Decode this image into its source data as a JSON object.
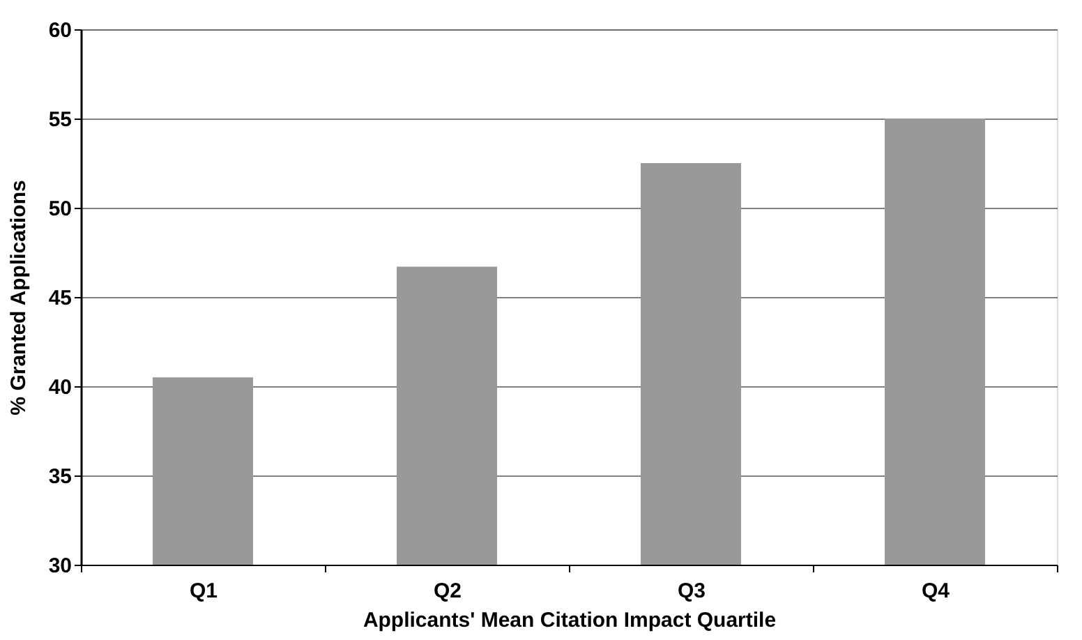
{
  "chart_data": {
    "type": "bar",
    "xlabel": "Applicants' Mean Citation Impact Quartile",
    "ylabel": "% Granted Applications",
    "categories": [
      "Q1",
      "Q2",
      "Q3",
      "Q4"
    ],
    "values": [
      40.5,
      46.7,
      52.5,
      55.0
    ],
    "color": "#999999",
    "ylim": [
      30,
      60
    ],
    "yticks": [
      30,
      35,
      40,
      45,
      50,
      55,
      60
    ],
    "grid": "y"
  }
}
